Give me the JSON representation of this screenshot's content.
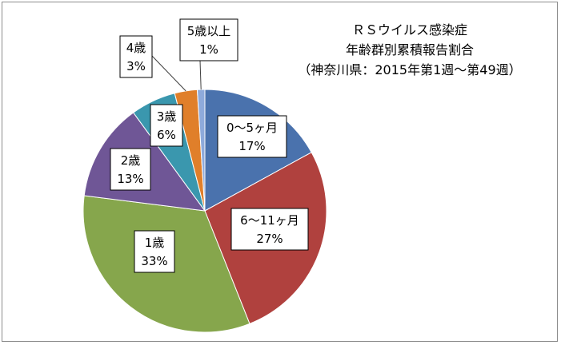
{
  "chart_data": {
    "type": "pie",
    "title_lines": [
      "ＲＳウイルス感染症",
      "年齢群別累積報告割合",
      "（神奈川県：2015年第1週～第49週）"
    ],
    "slices": [
      {
        "label": "0～5ヶ月",
        "value_label": "17%",
        "value": 17,
        "color": "#4a72ad"
      },
      {
        "label": "6～11ヶ月",
        "value_label": "27%",
        "value": 27,
        "color": "#b0413e"
      },
      {
        "label": "1歳",
        "value_label": "33%",
        "value": 33,
        "color": "#86a64c"
      },
      {
        "label": "2歳",
        "value_label": "13%",
        "value": 13,
        "color": "#6f5696"
      },
      {
        "label": "3歳",
        "value_label": "6%",
        "value": 6,
        "color": "#3a97ae"
      },
      {
        "label": "4歳",
        "value_label": "3%",
        "value": 3,
        "color": "#e07f2a"
      },
      {
        "label": "5歳以上",
        "value_label": "1%",
        "value": 1,
        "color": "#8eaadb"
      }
    ]
  }
}
